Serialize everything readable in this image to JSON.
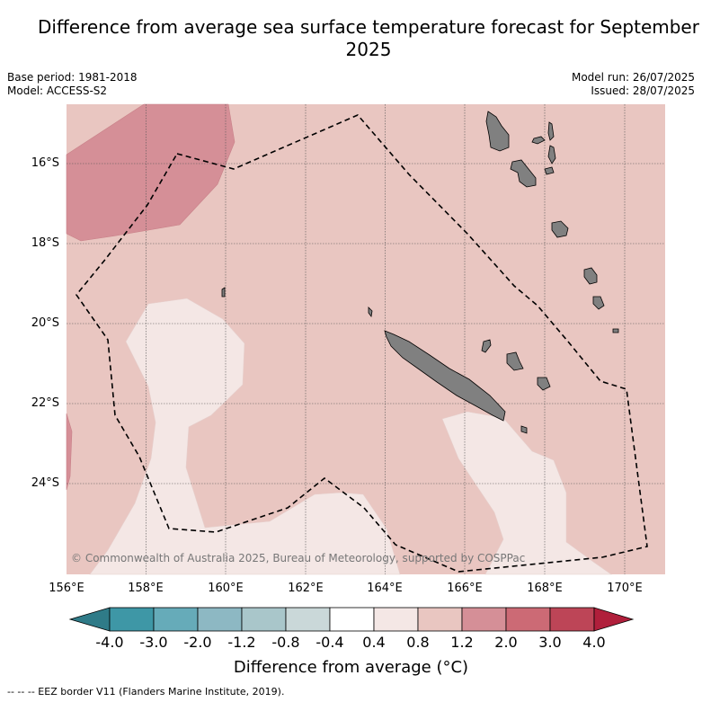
{
  "title": "Difference from average sea surface temperature forecast for September 2025",
  "meta": {
    "base_period": "Base period: 1981-2018",
    "model": "Model: ACCESS-S2",
    "model_run": "Model run: 26/07/2025",
    "issued": "Issued: 28/07/2025"
  },
  "map": {
    "lon_ticks": [
      "156°E",
      "158°E",
      "160°E",
      "162°E",
      "164°E",
      "166°E",
      "168°E",
      "170°E"
    ],
    "lat_ticks": [
      "16°S",
      "18°S",
      "20°S",
      "22°S",
      "24°S"
    ],
    "copyright": "© Commonwealth of Australia 2025, Bureau of Meteorology, supported by COSPPac"
  },
  "colorbar": {
    "ticks": [
      "-4.0",
      "-3.0",
      "-2.0",
      "-1.2",
      "-0.8",
      "-0.4",
      "0.4",
      "0.8",
      "1.2",
      "2.0",
      "3.0",
      "4.0"
    ],
    "colors": [
      "#3e97a6",
      "#66abb9",
      "#8db8c3",
      "#a9c6ca",
      "#cad8d9",
      "#ffffff",
      "#f4e7e5",
      "#e9c6c1",
      "#d58f97",
      "#cc6a75",
      "#bd4557"
    ],
    "under_color": "#2f7b88",
    "over_color": "#b01f3b",
    "title": "Difference from average (°C)"
  },
  "footnote": "-- -- -- EEZ border V11 (Flanders Marine Institute, 2019)."
}
